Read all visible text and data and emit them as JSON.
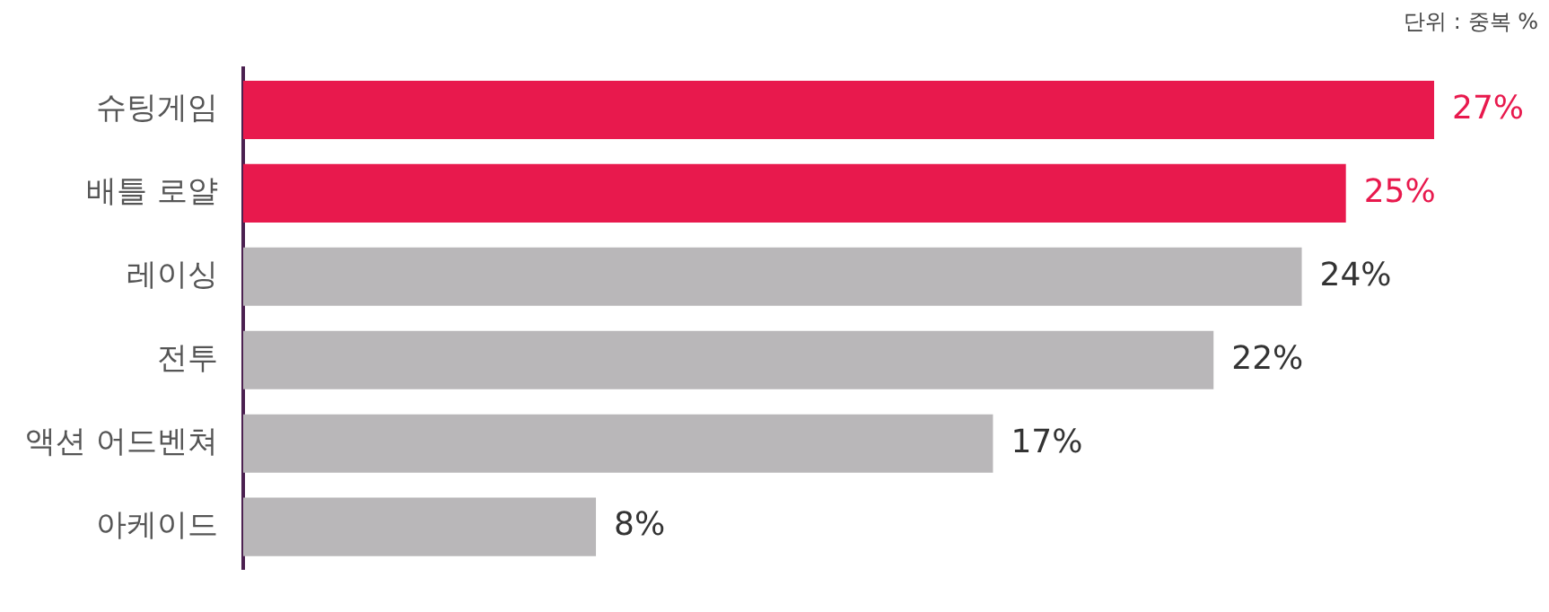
{
  "chart_data": {
    "type": "bar",
    "orientation": "horizontal",
    "categories": [
      "슈팅게임",
      "배틀 로얄",
      "레이싱",
      "전투",
      "액션 어드벤쳐",
      "아케이드"
    ],
    "values": [
      27,
      25,
      24,
      22,
      17,
      8
    ],
    "colors": [
      "#e8194d",
      "#e8194d",
      "#b9b7b9",
      "#b9b7b9",
      "#b9b7b9",
      "#b9b7b9"
    ],
    "value_labels": [
      "27%",
      "25%",
      "24%",
      "22%",
      "17%",
      "8%"
    ],
    "annotations": [
      "단위 : 중복 %"
    ],
    "legend": false
  }
}
